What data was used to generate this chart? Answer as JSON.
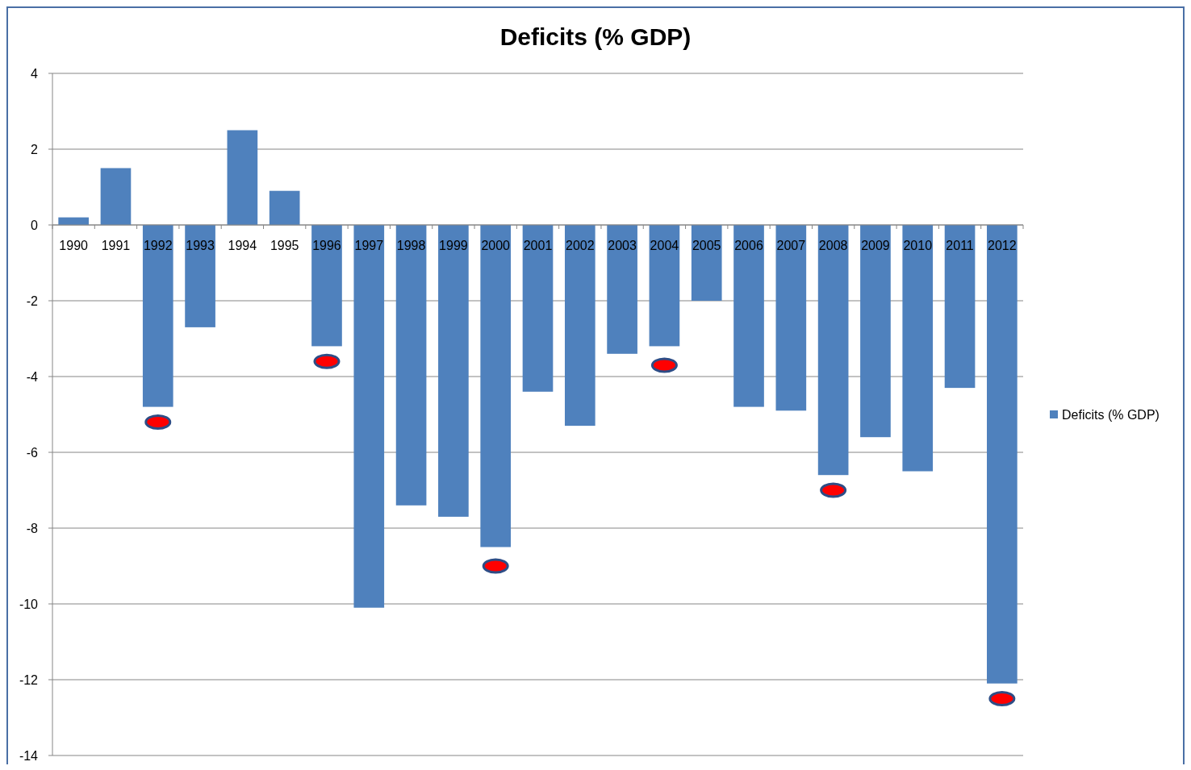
{
  "chart_data": {
    "type": "bar",
    "title": "Deficits (% GDP)",
    "categories": [
      "1990",
      "1991",
      "1992",
      "1993",
      "1994",
      "1995",
      "1996",
      "1997",
      "1998",
      "1999",
      "2000",
      "2001",
      "2002",
      "2003",
      "2004",
      "2005",
      "2006",
      "2007",
      "2008",
      "2009",
      "2010",
      "2011",
      "2012"
    ],
    "series": [
      {
        "name": "Deficits (% GDP)",
        "color": "#4f81bd",
        "values": [
          0.2,
          1.5,
          -4.8,
          -2.7,
          2.5,
          0.9,
          -3.2,
          -10.1,
          -7.4,
          -7.7,
          -8.5,
          -4.4,
          -5.3,
          -3.4,
          -3.2,
          -2.0,
          -4.8,
          -4.9,
          -6.6,
          -5.6,
          -6.5,
          -4.3,
          -12.1
        ]
      },
      {
        "type": "scatter",
        "color": "#ff0000",
        "values": [
          null,
          null,
          -5.2,
          null,
          null,
          null,
          -3.6,
          null,
          null,
          null,
          -9.0,
          null,
          null,
          null,
          -3.7,
          null,
          null,
          null,
          -7.0,
          null,
          null,
          null,
          -12.5
        ]
      }
    ],
    "ylim": [
      -14,
      4
    ],
    "yticks": [
      -14,
      -12,
      -10,
      -8,
      -6,
      -4,
      -2,
      0,
      2,
      4
    ],
    "grid": "y",
    "legend": "right"
  }
}
